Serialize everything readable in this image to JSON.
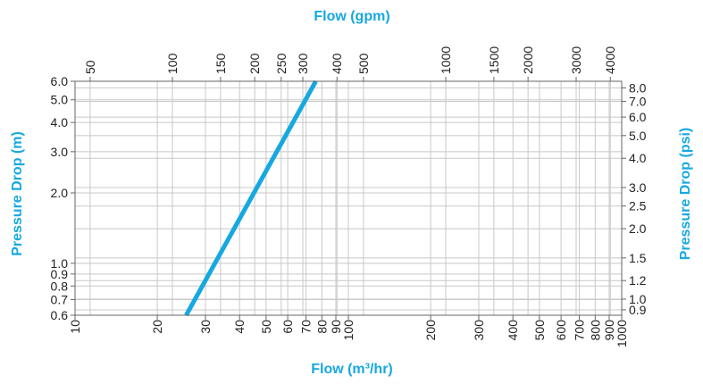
{
  "colors": {
    "accent": "#16a8e0",
    "grid": "#c8c8c8",
    "frame": "#666666",
    "text": "#222222"
  },
  "chart_data": {
    "type": "line",
    "scale": "log-log",
    "grid": true,
    "legend": "none",
    "title_top": "Flow (gpm)",
    "title_bottom": "Flow (m³/hr)",
    "title_left": "Pressure Drop (m)",
    "title_right": "Pressure Drop (psi)",
    "x_range_m3hr": [
      10,
      1000
    ],
    "y_range_m": [
      0.6,
      6.0
    ],
    "x_ticks_m3hr": [
      "10",
      "20",
      "30",
      "40",
      "50",
      "60",
      "70",
      "80",
      "90",
      "100",
      "200",
      "300",
      "400",
      "500",
      "600",
      "700",
      "800",
      "900",
      "1000"
    ],
    "x_ticks_gpm": [
      "50",
      "100",
      "150",
      "200",
      "250",
      "300",
      "400",
      "500",
      "1000",
      "1500",
      "2000",
      "3000",
      "4000"
    ],
    "y_ticks_m": [
      "0.6",
      "0.7",
      "0.8",
      "0.9",
      "1.0",
      "2.0",
      "3.0",
      "4.0",
      "5.0",
      "6.0"
    ],
    "y_ticks_psi": [
      "0.9",
      "1.0",
      "1.2",
      "1.5",
      "2.0",
      "2.5",
      "3.0",
      "4.0",
      "5.0",
      "6.0",
      "7.0",
      "8.0"
    ],
    "series": [
      {
        "color": "#16a8e0",
        "points_m3hr_m": [
          [
            25.5,
            0.6
          ],
          [
            76,
            6.0
          ]
        ]
      }
    ]
  }
}
